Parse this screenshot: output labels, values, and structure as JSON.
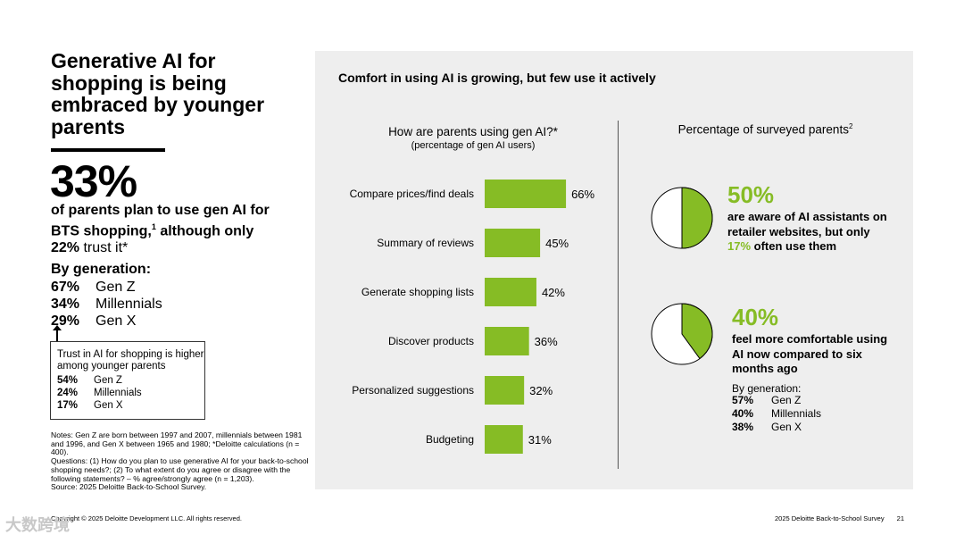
{
  "left": {
    "headline": "Generative AI for shopping is being embraced by younger parents",
    "big_stat": "33%",
    "stat_line1": "of parents plan to use gen AI for",
    "stat_line2a": "BTS shopping,",
    "stat_sup": "1",
    "stat_line2b": " although only",
    "stat_line3_pct": "22%",
    "stat_line3_rest": " trust it*",
    "by_generation_label": "By generation:",
    "generations": [
      {
        "pct": "67%",
        "label": "Gen Z"
      },
      {
        "pct": "34%",
        "label": "Millennials"
      },
      {
        "pct": "29%",
        "label": "Gen X"
      }
    ],
    "trust_box": {
      "text": "Trust in AI for shopping is higher among younger parents",
      "rows": [
        {
          "pct": "54%",
          "label": "Gen Z"
        },
        {
          "pct": "24%",
          "label": "Millennials"
        },
        {
          "pct": "17%",
          "label": "Gen X"
        }
      ]
    },
    "notes": "Notes: Gen Z are born between 1997 and 2007, millennials between 1981 and 1996, and Gen X between 1965 and 1980; *Deloitte calculations (n = 400).\nQuestions: (1) How do you plan to use generative AI for your back-to-school shopping needs?; (2) To what extent do you agree or disagree with the following statements? – % agree/strongly agree  (n = 1,203).\nSource: 2025 Deloitte Back-to-School Survey."
  },
  "footer": {
    "copyright": "Copyright © 2025 Deloitte Development LLC. All rights reserved.",
    "report": "2025 Deloitte Back-to-School Survey",
    "page": "21"
  },
  "watermark": "大数跨境",
  "panel": {
    "title": "Comfort in using AI is growing, but few use it actively"
  },
  "chart_data": [
    {
      "type": "bar",
      "orientation": "horizontal",
      "title": "How are parents using gen AI?*",
      "subtitle": "(percentage of gen AI users)",
      "categories": [
        "Compare prices/find deals",
        "Summary of reviews",
        "Generate shopping lists",
        "Discover products",
        "Personalized suggestions",
        "Budgeting"
      ],
      "values": [
        66,
        45,
        42,
        36,
        32,
        31
      ],
      "value_labels": [
        "66%",
        "45%",
        "42%",
        "36%",
        "32%",
        "31%"
      ],
      "xlim": [
        0,
        100
      ],
      "color": "#86bc25"
    },
    {
      "type": "pie",
      "title": "Percentage of surveyed parents",
      "title_sup": "2",
      "value": 50,
      "big_label": "50%",
      "text_a": "are aware of AI assistants on retailer websites, but only ",
      "text_highlight": "17%",
      "text_b": " often use them",
      "fill": "#86bc25"
    },
    {
      "type": "pie",
      "value": 40,
      "big_label": "40%",
      "text": "feel more comfortable using AI now compared to six months ago",
      "by_generation_label": "By generation:",
      "generations": [
        {
          "pct": "57%",
          "label": "Gen Z"
        },
        {
          "pct": "40%",
          "label": "Millennials"
        },
        {
          "pct": "38%",
          "label": "Gen X"
        }
      ],
      "fill": "#86bc25"
    }
  ]
}
